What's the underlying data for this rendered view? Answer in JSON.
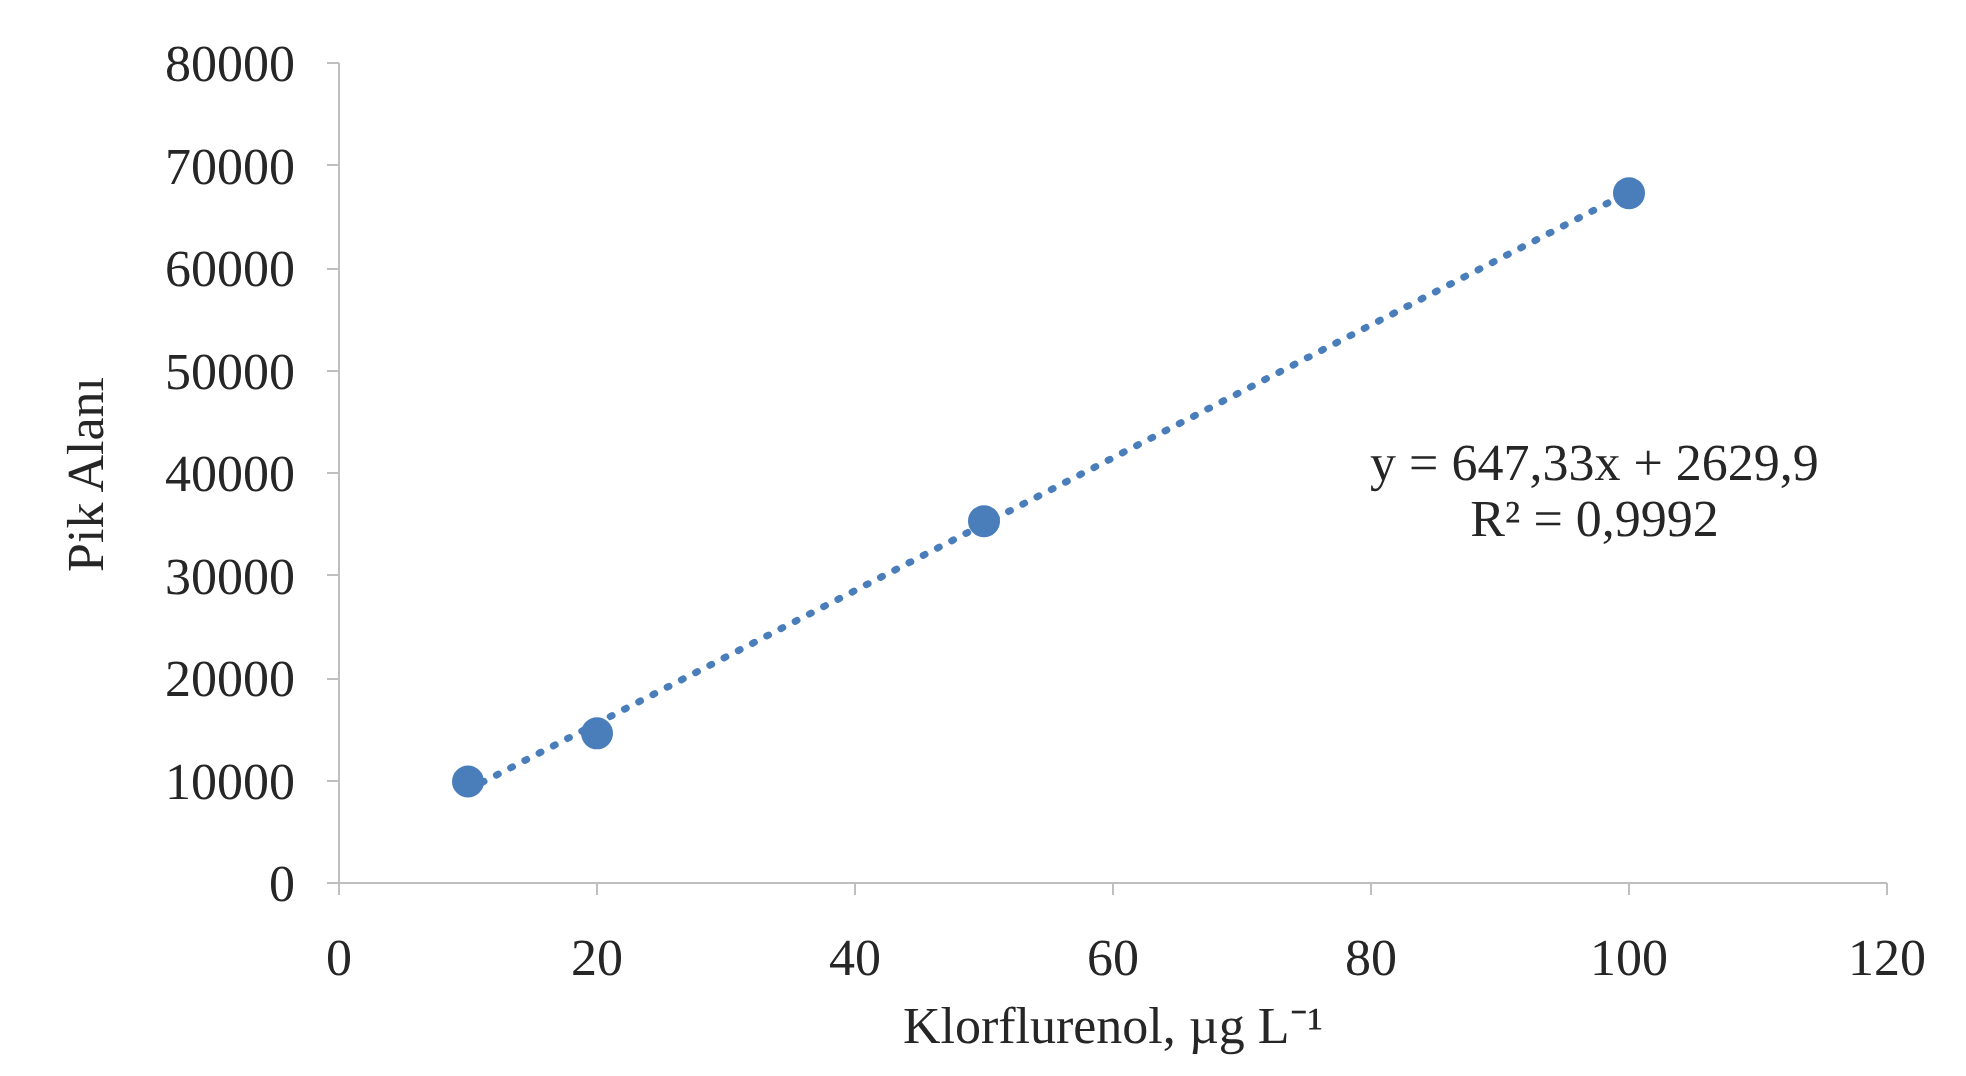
{
  "chart_data": {
    "type": "scatter",
    "xlabel": "Klorflurenol, µg L⁻¹",
    "ylabel": "Pik Alanı",
    "xlim": [
      0,
      120
    ],
    "xticks": [
      0,
      20,
      40,
      60,
      80,
      100,
      120
    ],
    "ylim": [
      0,
      80000
    ],
    "yticks": [
      0,
      10000,
      20000,
      30000,
      40000,
      50000,
      60000,
      70000,
      80000
    ],
    "grid": false,
    "series": [
      {
        "color": "#4a7ebb",
        "marker": "circle",
        "x": [
          10,
          20,
          50,
          100
        ],
        "values": [
          9900,
          14600,
          35300,
          67300
        ]
      },
      {
        "type": "line",
        "color": "#4a7ebb",
        "line_style": "dotted",
        "marker": "none",
        "x": [
          10,
          100
        ],
        "values": [
          9100,
          67400
        ]
      }
    ],
    "annotations": [
      "y = 647,33x + 2629,9",
      "R² = 0,9992"
    ]
  }
}
